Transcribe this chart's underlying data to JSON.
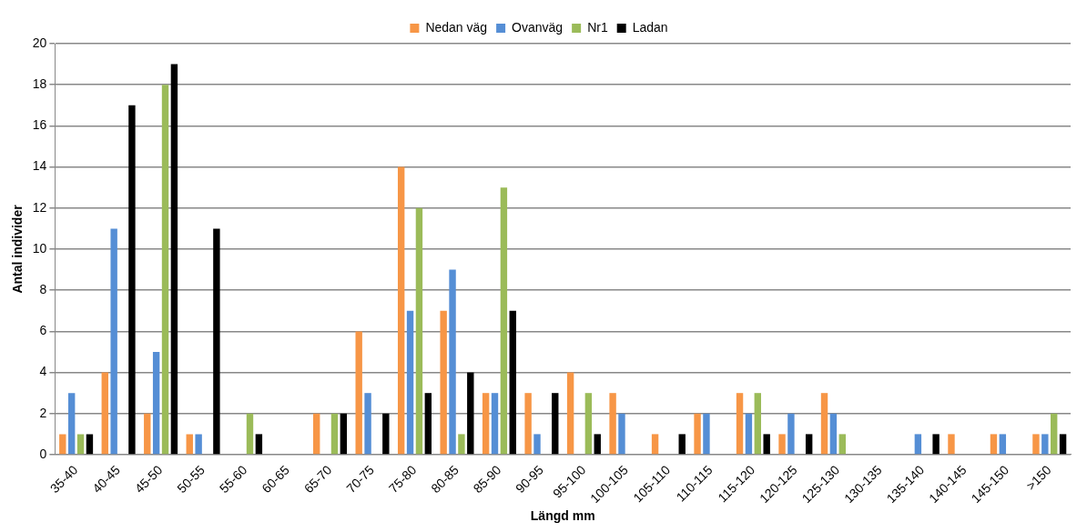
{
  "chart_data": {
    "type": "bar",
    "xlabel": "Längd mm",
    "ylabel": "Antal individer",
    "categories": [
      "35-40",
      "40-45",
      "45-50",
      "50-55",
      "55-60",
      "60-65",
      "65-70",
      "70-75",
      "75-80",
      "80-85",
      "85-90",
      "90-95",
      "95-100",
      "100-105",
      "105-110",
      "110-115",
      "115-120",
      "120-125",
      "125-130",
      "130-135",
      "135-140",
      "140-145",
      "145-150",
      ">150"
    ],
    "series": [
      {
        "name": "Nedan väg",
        "color": "#f79646",
        "values": [
          1,
          4,
          2,
          1,
          0,
          0,
          2,
          6,
          14,
          7,
          3,
          3,
          4,
          3,
          1,
          2,
          3,
          1,
          3,
          0,
          0,
          1,
          1,
          1
        ]
      },
      {
        "name": "Ovanväg",
        "color": "#558ed5",
        "values": [
          3,
          11,
          5,
          1,
          0,
          0,
          0,
          3,
          7,
          9,
          3,
          1,
          0,
          2,
          0,
          2,
          2,
          2,
          2,
          0,
          1,
          0,
          1,
          1
        ]
      },
      {
        "name": "Nr1",
        "color": "#9bbb59",
        "values": [
          1,
          0,
          18,
          0,
          2,
          0,
          2,
          0,
          12,
          1,
          13,
          0,
          3,
          0,
          0,
          0,
          3,
          0,
          1,
          0,
          0,
          0,
          0,
          2
        ]
      },
      {
        "name": "Ladan",
        "color": "#000000",
        "values": [
          1,
          17,
          19,
          11,
          1,
          0,
          2,
          2,
          3,
          4,
          7,
          3,
          1,
          0,
          1,
          0,
          1,
          1,
          0,
          0,
          1,
          0,
          0,
          1
        ]
      }
    ],
    "ylim": [
      0,
      20
    ],
    "yticks": [
      0,
      2,
      4,
      6,
      8,
      10,
      12,
      14,
      16,
      18,
      20
    ],
    "grid": "y",
    "legend": "top"
  }
}
